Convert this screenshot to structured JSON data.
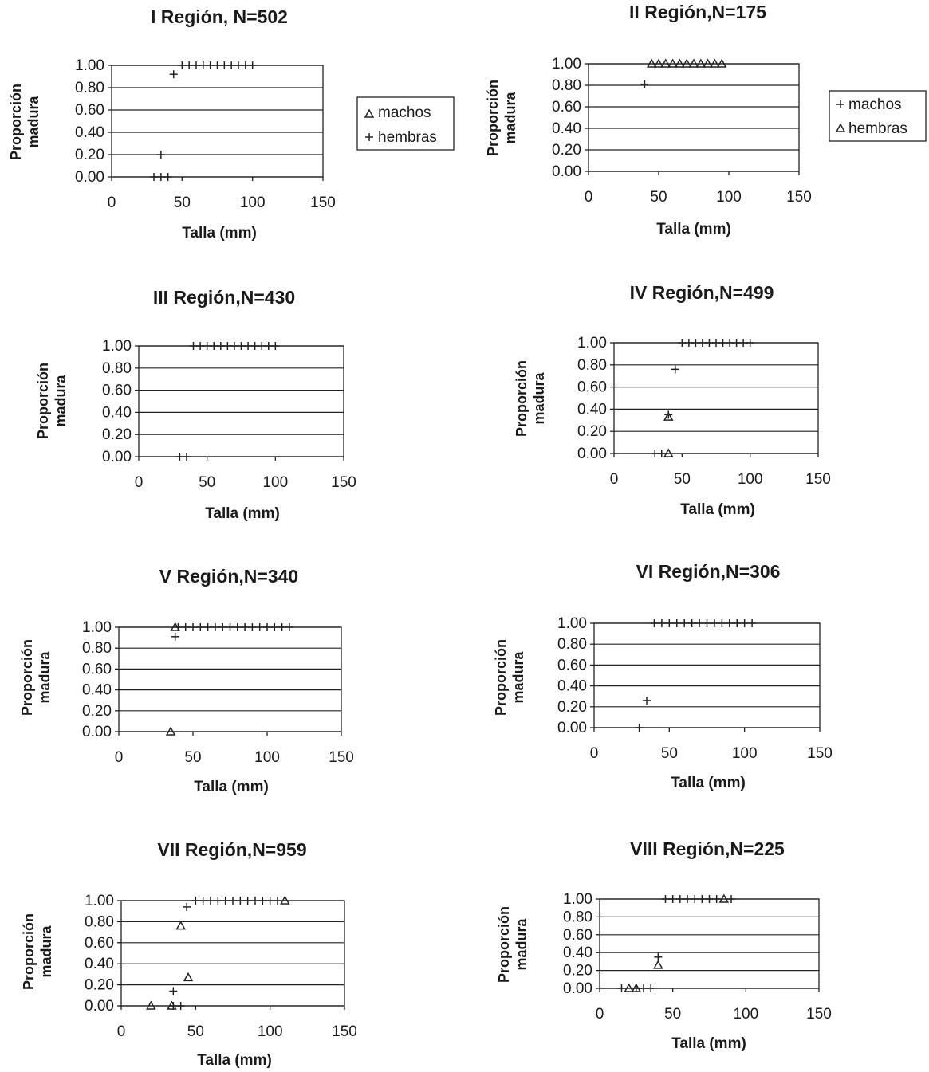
{
  "legend_I": {
    "entries": [
      {
        "symbol": "triangle",
        "label": "machos"
      },
      {
        "symbol": "plus",
        "label": "hembras"
      }
    ]
  },
  "legend_II": {
    "entries": [
      {
        "symbol": "plus",
        "label": "machos"
      },
      {
        "symbol": "triangle",
        "label": "hembras"
      }
    ]
  },
  "chart_data": [
    {
      "type": "scatter",
      "title": "I Región, N=502",
      "xlabel": "Talla (mm)",
      "ylabel": [
        "Proporción",
        "madura"
      ],
      "xlim": [
        0,
        150
      ],
      "ylim": [
        0,
        1
      ],
      "xticks": [
        "0",
        "50",
        "100",
        "150"
      ],
      "yticks": [
        "0.00",
        "0.20",
        "0.40",
        "0.60",
        "0.80",
        "1.00"
      ],
      "grid": true,
      "legend": "right",
      "series": [
        {
          "name": "machos",
          "marker": "triangle",
          "points": []
        },
        {
          "name": "hembras",
          "marker": "plus",
          "points": [
            [
              30,
              0
            ],
            [
              35,
              0
            ],
            [
              40,
              0
            ],
            [
              35,
              0.2
            ],
            [
              44,
              0.92
            ],
            [
              50,
              1
            ],
            [
              55,
              1
            ],
            [
              60,
              1
            ],
            [
              65,
              1
            ],
            [
              70,
              1
            ],
            [
              75,
              1
            ],
            [
              80,
              1
            ],
            [
              85,
              1
            ],
            [
              90,
              1
            ],
            [
              95,
              1
            ],
            [
              100,
              1
            ]
          ]
        }
      ]
    },
    {
      "type": "scatter",
      "title": "II Región,N=175",
      "xlabel": "Talla (mm)",
      "ylabel": [
        "Proporción",
        "madura"
      ],
      "xlim": [
        0,
        150
      ],
      "ylim": [
        0,
        1
      ],
      "xticks": [
        "0",
        "50",
        "100",
        "150"
      ],
      "yticks": [
        "0.00",
        "0.20",
        "0.40",
        "0.60",
        "0.80",
        "1.00"
      ],
      "grid": true,
      "legend": "right",
      "series": [
        {
          "name": "machos",
          "marker": "plus",
          "points": [
            [
              40,
              0.81
            ]
          ]
        },
        {
          "name": "hembras",
          "marker": "triangle",
          "points": [
            [
              45,
              1
            ],
            [
              50,
              1
            ],
            [
              55,
              1
            ],
            [
              60,
              1
            ],
            [
              65,
              1
            ],
            [
              70,
              1
            ],
            [
              75,
              1
            ],
            [
              80,
              1
            ],
            [
              85,
              1
            ],
            [
              90,
              1
            ],
            [
              95,
              1
            ]
          ]
        }
      ]
    },
    {
      "type": "scatter",
      "title": "III Región,N=430",
      "xlabel": "Talla (mm)",
      "ylabel": [
        "Proporción",
        "madura"
      ],
      "xlim": [
        0,
        150
      ],
      "ylim": [
        0,
        1
      ],
      "xticks": [
        "0",
        "50",
        "100",
        "150"
      ],
      "yticks": [
        "0.00",
        "0.20",
        "0.40",
        "0.60",
        "0.80",
        "1.00"
      ],
      "grid": true,
      "series": [
        {
          "marker": "plus",
          "points": [
            [
              30,
              0
            ],
            [
              35,
              0
            ],
            [
              40,
              1
            ],
            [
              45,
              1
            ],
            [
              50,
              1
            ],
            [
              55,
              1
            ],
            [
              60,
              1
            ],
            [
              65,
              1
            ],
            [
              70,
              1
            ],
            [
              75,
              1
            ],
            [
              80,
              1
            ],
            [
              85,
              1
            ],
            [
              90,
              1
            ],
            [
              95,
              1
            ],
            [
              100,
              1
            ]
          ]
        }
      ]
    },
    {
      "type": "scatter",
      "title": "IV Región,N=499",
      "xlabel": "Talla (mm)",
      "ylabel": [
        "Proporción",
        "madura"
      ],
      "xlim": [
        0,
        150
      ],
      "ylim": [
        0,
        1
      ],
      "xticks": [
        "0",
        "50",
        "100",
        "150"
      ],
      "yticks": [
        "0.00",
        "0.20",
        "0.40",
        "0.60",
        "0.80",
        "1.00"
      ],
      "grid": true,
      "series": [
        {
          "marker": "plus",
          "points": [
            [
              30,
              0
            ],
            [
              35,
              0
            ],
            [
              40,
              0.35
            ],
            [
              45,
              0.76
            ],
            [
              50,
              1
            ],
            [
              55,
              1
            ],
            [
              60,
              1
            ],
            [
              65,
              1
            ],
            [
              70,
              1
            ],
            [
              75,
              1
            ],
            [
              80,
              1
            ],
            [
              85,
              1
            ],
            [
              90,
              1
            ],
            [
              95,
              1
            ],
            [
              100,
              1
            ]
          ]
        },
        {
          "marker": "triangle",
          "points": [
            [
              40,
              0
            ],
            [
              40,
              0.33
            ]
          ]
        }
      ]
    },
    {
      "type": "scatter",
      "title": "V Región,N=340",
      "xlabel": "Talla (mm)",
      "ylabel": [
        "Proporción",
        "madura"
      ],
      "xlim": [
        0,
        150
      ],
      "ylim": [
        0,
        1
      ],
      "xticks": [
        "0",
        "50",
        "100",
        "150"
      ],
      "yticks": [
        "0.00",
        "0.20",
        "0.40",
        "0.60",
        "0.80",
        "1.00"
      ],
      "grid": true,
      "series": [
        {
          "marker": "plus",
          "points": [
            [
              38,
              0.91
            ],
            [
              40,
              1
            ],
            [
              45,
              1
            ],
            [
              50,
              1
            ],
            [
              55,
              1
            ],
            [
              60,
              1
            ],
            [
              65,
              1
            ],
            [
              70,
              1
            ],
            [
              75,
              1
            ],
            [
              80,
              1
            ],
            [
              85,
              1
            ],
            [
              90,
              1
            ],
            [
              95,
              1
            ],
            [
              100,
              1
            ],
            [
              105,
              1
            ],
            [
              110,
              1
            ],
            [
              115,
              1
            ]
          ]
        },
        {
          "marker": "triangle",
          "points": [
            [
              35,
              0
            ],
            [
              38,
              1
            ]
          ]
        }
      ]
    },
    {
      "type": "scatter",
      "title": "VI Región,N=306",
      "xlabel": "Talla (mm)",
      "ylabel": [
        "Proporción",
        "madura"
      ],
      "xlim": [
        0,
        150
      ],
      "ylim": [
        0,
        1
      ],
      "xticks": [
        "0",
        "50",
        "100",
        "150"
      ],
      "yticks": [
        "0.00",
        "0.20",
        "0.40",
        "0.60",
        "0.80",
        "1.00"
      ],
      "grid": true,
      "series": [
        {
          "marker": "plus",
          "points": [
            [
              30,
              0
            ],
            [
              35,
              0.26
            ],
            [
              40,
              1
            ],
            [
              45,
              1
            ],
            [
              50,
              1
            ],
            [
              55,
              1
            ],
            [
              60,
              1
            ],
            [
              65,
              1
            ],
            [
              70,
              1
            ],
            [
              75,
              1
            ],
            [
              80,
              1
            ],
            [
              85,
              1
            ],
            [
              90,
              1
            ],
            [
              95,
              1
            ],
            [
              100,
              1
            ],
            [
              105,
              1
            ]
          ]
        }
      ]
    },
    {
      "type": "scatter",
      "title": "VII Región,N=959",
      "xlabel": "Talla (mm)",
      "ylabel": [
        "Proporción",
        "madura"
      ],
      "xlim": [
        0,
        150
      ],
      "ylim": [
        0,
        1
      ],
      "xticks": [
        "0",
        "50",
        "100",
        "150"
      ],
      "yticks": [
        "0.00",
        "0.20",
        "0.40",
        "0.60",
        "0.80",
        "1.00"
      ],
      "grid": true,
      "series": [
        {
          "marker": "plus",
          "points": [
            [
              35,
              0
            ],
            [
              40,
              0
            ],
            [
              35,
              0.14
            ],
            [
              44,
              0.94
            ],
            [
              50,
              1
            ],
            [
              55,
              1
            ],
            [
              60,
              1
            ],
            [
              65,
              1
            ],
            [
              70,
              1
            ],
            [
              75,
              1
            ],
            [
              80,
              1
            ],
            [
              85,
              1
            ],
            [
              90,
              1
            ],
            [
              95,
              1
            ],
            [
              100,
              1
            ],
            [
              105,
              1
            ]
          ]
        },
        {
          "marker": "triangle",
          "points": [
            [
              20,
              0
            ],
            [
              34,
              0
            ],
            [
              40,
              0.76
            ],
            [
              45,
              0.27
            ],
            [
              110,
              1
            ]
          ]
        }
      ]
    },
    {
      "type": "scatter",
      "title": "VIII Región,N=225",
      "xlabel": "Talla (mm)",
      "ylabel": [
        "Proporción",
        "madura"
      ],
      "xlim": [
        0,
        150
      ],
      "ylim": [
        0,
        1
      ],
      "xticks": [
        "0",
        "50",
        "100",
        "150"
      ],
      "yticks": [
        "0.00",
        "0.20",
        "0.40",
        "0.60",
        "0.80",
        "1.00"
      ],
      "grid": true,
      "series": [
        {
          "marker": "plus",
          "points": [
            [
              15,
              0
            ],
            [
              25,
              0
            ],
            [
              30,
              0
            ],
            [
              35,
              0
            ],
            [
              40,
              0.35
            ],
            [
              45,
              1
            ],
            [
              50,
              1
            ],
            [
              55,
              1
            ],
            [
              60,
              1
            ],
            [
              65,
              1
            ],
            [
              70,
              1
            ],
            [
              75,
              1
            ],
            [
              80,
              1
            ],
            [
              90,
              1
            ]
          ]
        },
        {
          "marker": "triangle",
          "points": [
            [
              20,
              0
            ],
            [
              25,
              0
            ],
            [
              40,
              0.26
            ],
            [
              85,
              1
            ]
          ]
        }
      ]
    }
  ]
}
